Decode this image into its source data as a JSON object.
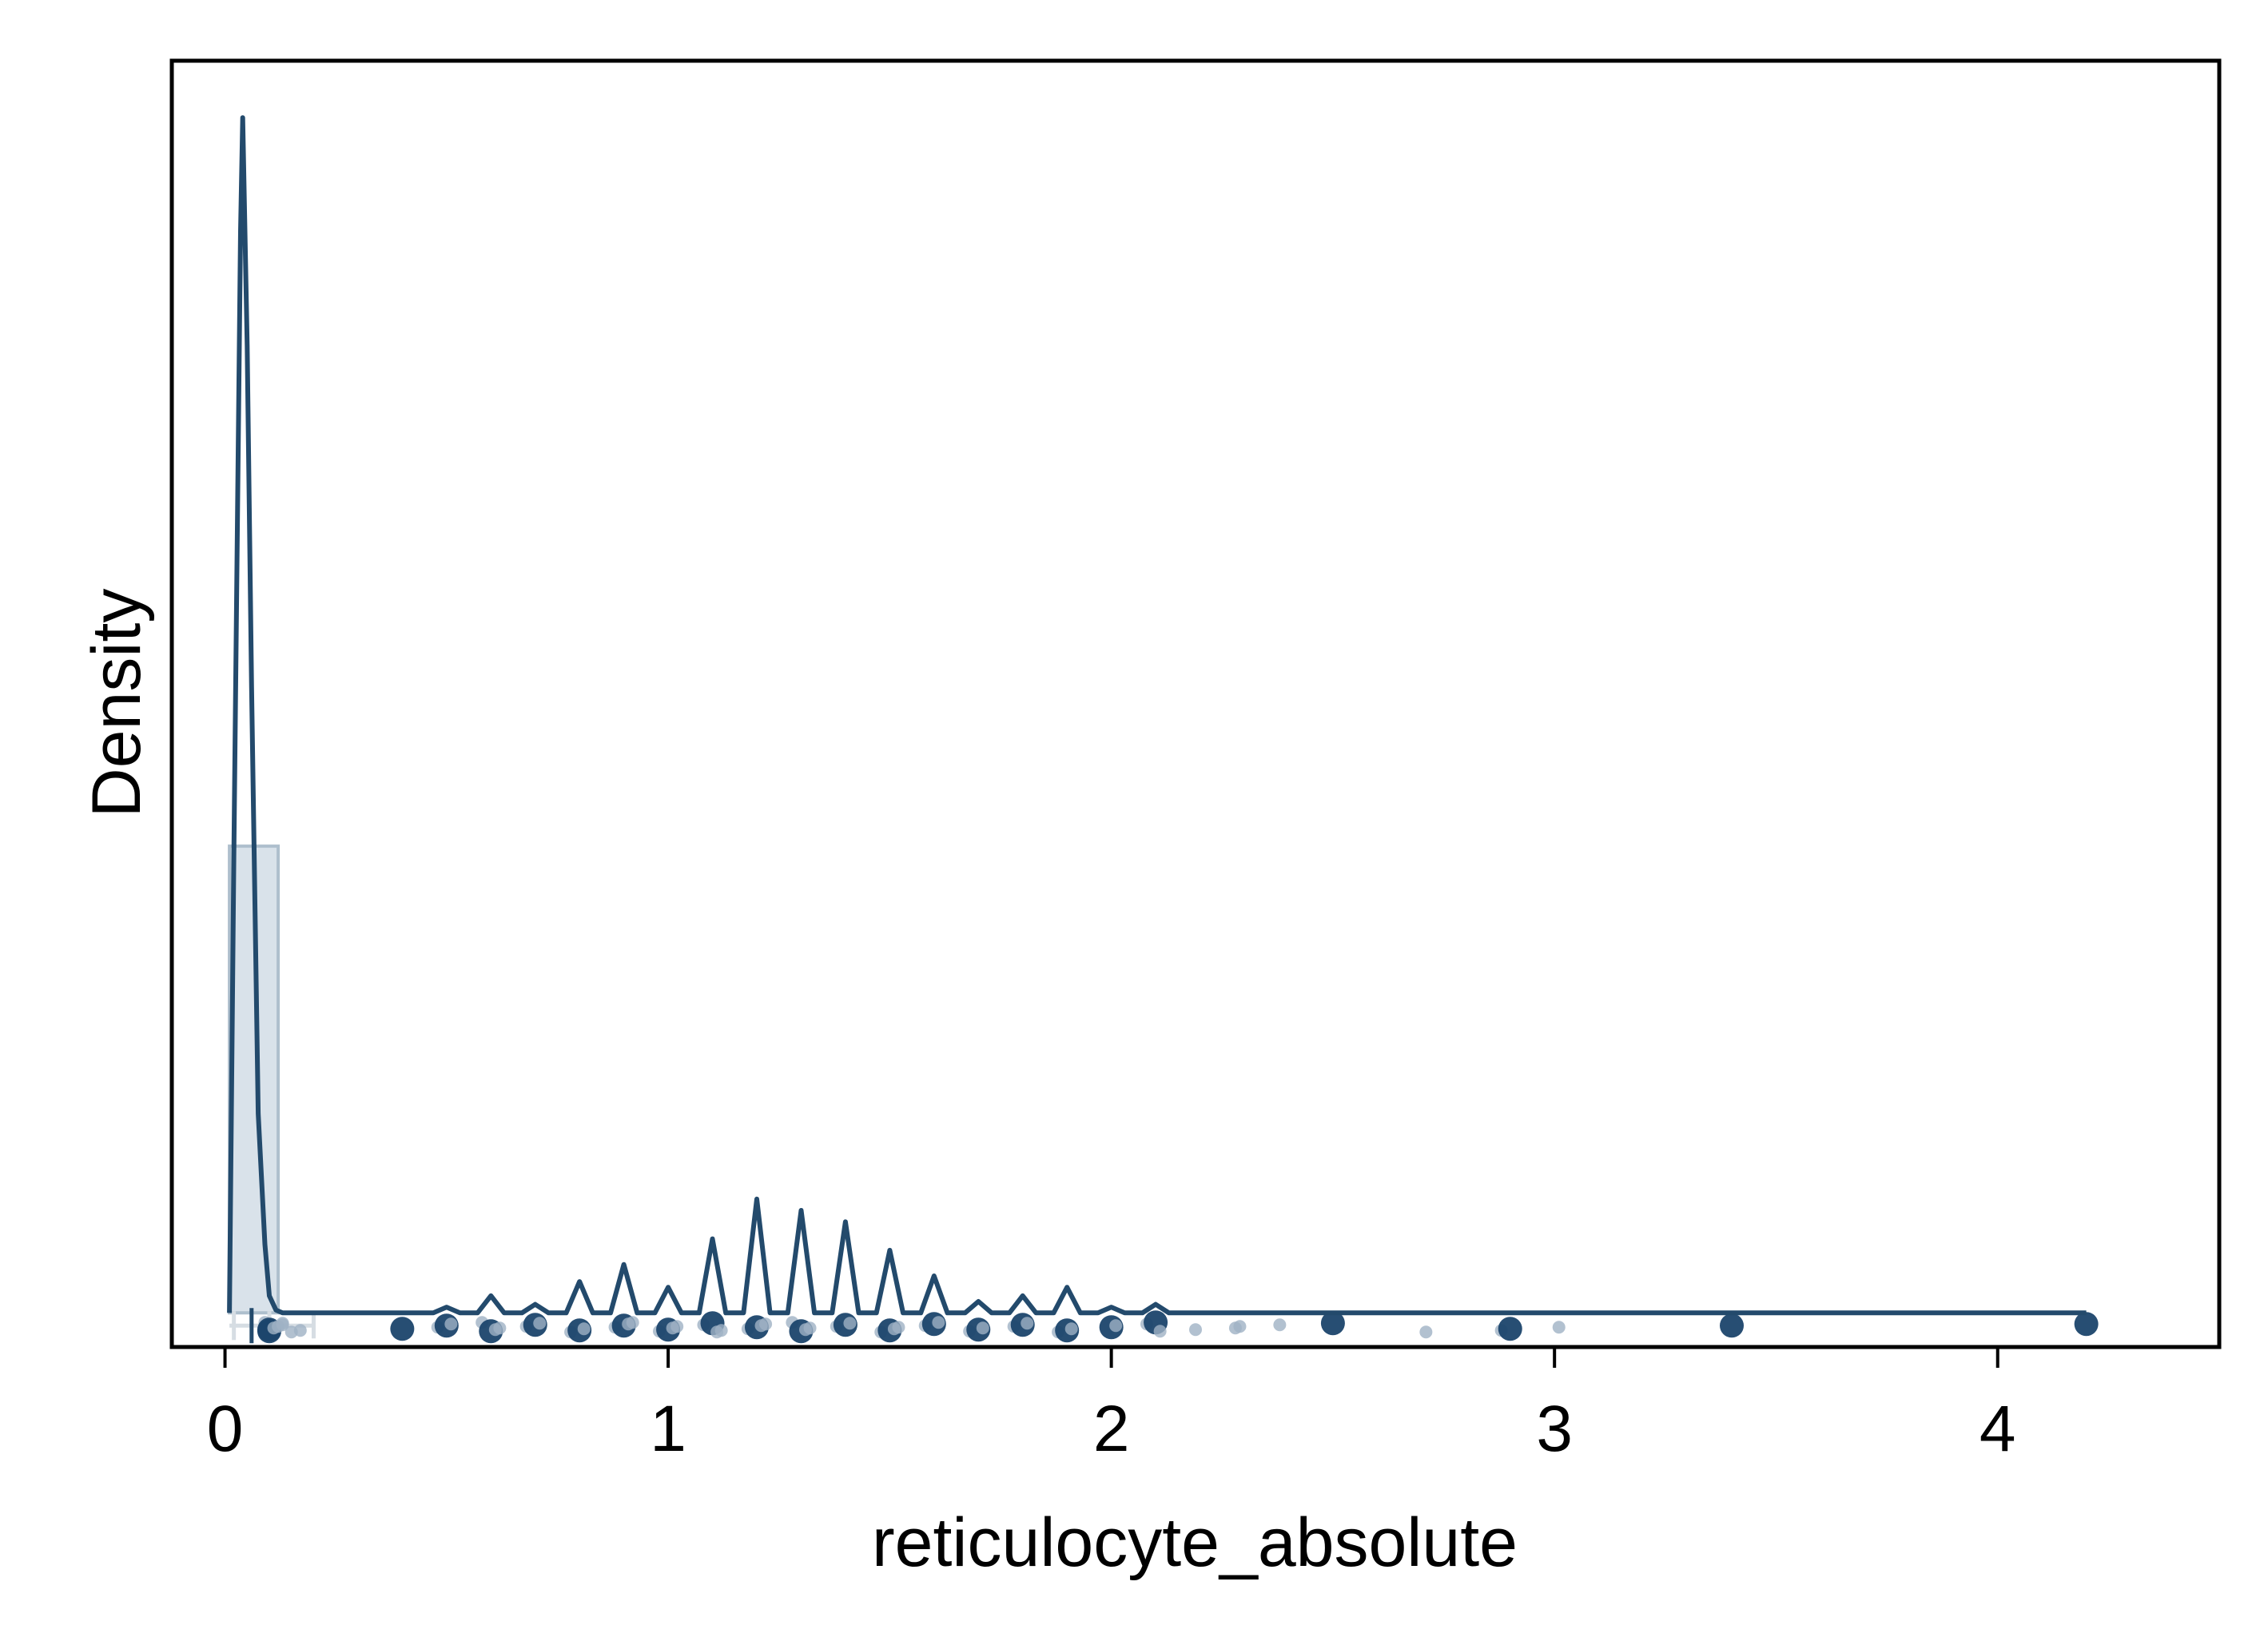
{
  "chart_data": {
    "type": "area",
    "title": "",
    "xlabel": "reticulocyte_absolute",
    "ylabel": "Density",
    "xlim": [
      -0.12,
      4.5
    ],
    "ylim": [
      -0.6,
      22
    ],
    "x_ticks": [
      0,
      1,
      2,
      3,
      4
    ],
    "x_tick_labels": [
      "0",
      "1",
      "2",
      "3",
      "4"
    ],
    "y_ticks_shown": false,
    "grid": false,
    "legend": "none",
    "colors": {
      "line": "#234a6c",
      "fill": "#d9e2ea",
      "hist_edge": "#aebfcd",
      "point": "#1b456b",
      "point_light": "#9fb2c4",
      "box": "#d6dde3"
    },
    "histogram": {
      "bins": [
        {
          "x0": 0.01,
          "x1": 0.12,
          "density": 8.2
        }
      ]
    },
    "density_curve": {
      "x": [
        0.01,
        0.02,
        0.035,
        0.04,
        0.05,
        0.06,
        0.075,
        0.09,
        0.1,
        0.115,
        0.13,
        0.15,
        0.18,
        0.25,
        0.4,
        0.47,
        0.5,
        0.53,
        0.57,
        0.6,
        0.63,
        0.67,
        0.7,
        0.73,
        0.77,
        0.8,
        0.83,
        0.87,
        0.9,
        0.93,
        0.97,
        1.0,
        1.03,
        1.07,
        1.1,
        1.13,
        1.17,
        1.2,
        1.23,
        1.27,
        1.3,
        1.33,
        1.37,
        1.4,
        1.43,
        1.47,
        1.5,
        1.53,
        1.57,
        1.6,
        1.63,
        1.67,
        1.7,
        1.73,
        1.77,
        1.8,
        1.83,
        1.87,
        1.9,
        1.93,
        1.97,
        2.0,
        2.03,
        2.07,
        2.1,
        2.13,
        2.3,
        2.5,
        2.7,
        2.9,
        3.4,
        4.2
      ],
      "y": [
        0.0,
        8.0,
        19.0,
        21.0,
        17.0,
        11.0,
        3.5,
        1.2,
        0.3,
        0.05,
        0.0,
        0.0,
        0.0,
        0.0,
        0.0,
        0.0,
        0.1,
        0.0,
        0.0,
        0.3,
        0.0,
        0.0,
        0.15,
        0.0,
        0.0,
        0.55,
        0.0,
        0.0,
        0.85,
        0.0,
        0.0,
        0.45,
        0.0,
        0.0,
        1.3,
        0.0,
        0.0,
        2.0,
        0.0,
        0.0,
        1.8,
        0.0,
        0.0,
        1.6,
        0.0,
        0.0,
        1.1,
        0.0,
        0.0,
        0.65,
        0.0,
        0.0,
        0.2,
        0.0,
        0.0,
        0.3,
        0.0,
        0.0,
        0.45,
        0.0,
        0.0,
        0.1,
        0.0,
        0.0,
        0.15,
        0.0,
        0.0,
        0.0,
        0.0,
        0.0,
        0.0,
        0.0
      ]
    },
    "points_x": [
      0.09,
      0.1,
      0.1,
      0.11,
      0.12,
      0.13,
      0.13,
      0.15,
      0.17,
      0.4,
      0.48,
      0.5,
      0.51,
      0.58,
      0.6,
      0.61,
      0.62,
      0.68,
      0.7,
      0.71,
      0.78,
      0.8,
      0.81,
      0.88,
      0.9,
      0.91,
      0.92,
      0.98,
      1.0,
      1.01,
      1.02,
      1.08,
      1.1,
      1.11,
      1.12,
      1.18,
      1.2,
      1.21,
      1.22,
      1.28,
      1.3,
      1.31,
      1.32,
      1.38,
      1.4,
      1.41,
      1.48,
      1.5,
      1.51,
      1.52,
      1.58,
      1.6,
      1.61,
      1.68,
      1.7,
      1.71,
      1.78,
      1.8,
      1.81,
      1.88,
      1.9,
      1.91,
      2.0,
      2.01,
      2.08,
      2.1,
      2.11,
      2.19,
      2.28,
      2.29,
      2.38,
      2.5,
      2.71,
      2.88,
      2.9,
      3.01,
      3.4,
      4.2
    ],
    "box_plot": {
      "min": 0.01,
      "q1": 0.02,
      "median": 0.06,
      "q3": 0.1,
      "max": 0.2,
      "whisker_end": 0.2
    }
  }
}
